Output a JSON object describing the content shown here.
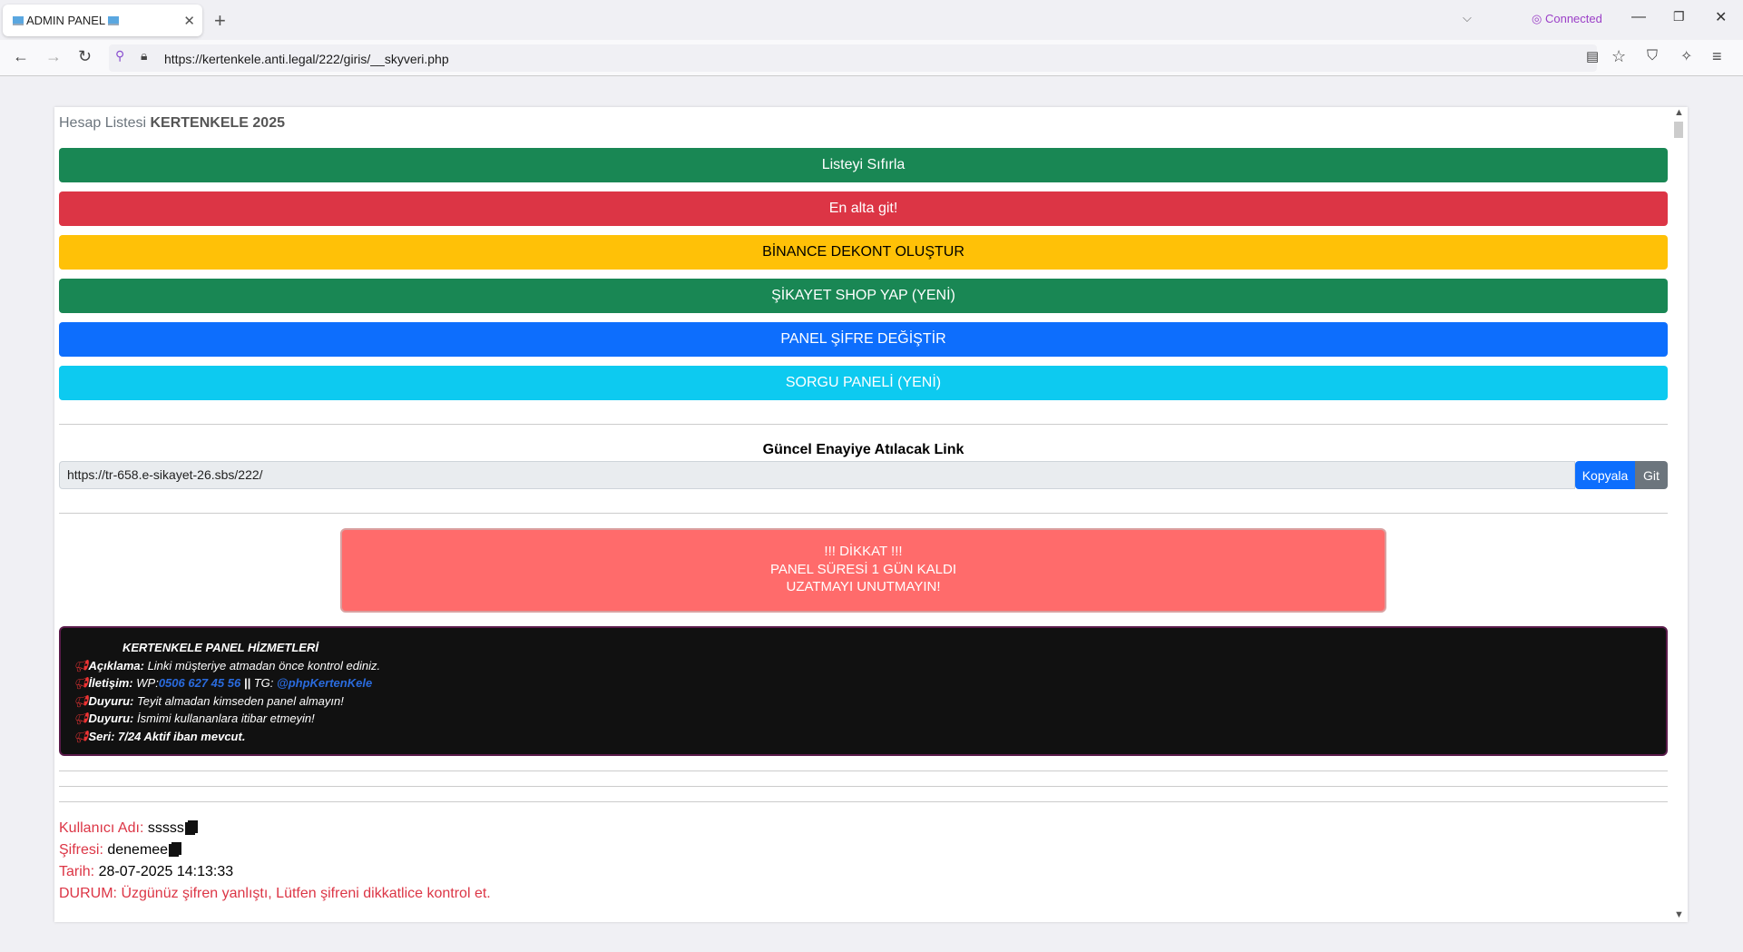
{
  "browser": {
    "tab_title": "ADMIN PANEL",
    "url": "https://kertenkele.anti.legal/222/giris/__skyveri.php",
    "vpn_status": "Connected"
  },
  "page": {
    "title_prefix": "Hesap Listesi",
    "title_bold": "KERTENKELE 2025",
    "buttons": [
      {
        "label": "Listeyi Sıfırla",
        "color": "#198754"
      },
      {
        "label": "En alta git!",
        "color": "#dc3545"
      },
      {
        "label": "BİNANCE DEKONT OLUŞTUR",
        "color": "#ffc107"
      },
      {
        "label": "ŞİKAYET SHOP YAP (YENİ)",
        "color": "#198754"
      },
      {
        "label": "PANEL ŞİFRE DEĞİŞTİR",
        "color": "#0d6efd"
      },
      {
        "label": "SORGU PANELİ (YENİ)",
        "color": "#0dcaf0"
      }
    ],
    "link_title": "Güncel Enayiye Atılacak Link",
    "link_value": "https://tr-658.e-sikayet-26.sbs/222/",
    "copy_label": "Kopyala",
    "go_label": "Git",
    "alert": [
      "!!! DİKKAT !!!",
      "PANEL SÜRESİ 1 GÜN KALDI",
      "UZATMAYI UNUTMAYIN!"
    ],
    "info": {
      "heading": "KERTENKELE PANEL HİZMETLERİ",
      "l1_label": "Açıklama:",
      "l1_text": "Linki müşteriye atmadan önce kontrol ediniz.",
      "l2_label": "İletişim:",
      "l2_wp": "WP:",
      "l2_phone": "0506 627 45 56",
      "l2_sep": "||",
      "l2_tg": "TG:",
      "l2_handle": "@phpKertenKele",
      "l3_label": "Duyuru:",
      "l3_text": "Teyit almadan kimseden panel almayın!",
      "l4_label": "Duyuru:",
      "l4_text": "İsmimi kullananlara itibar etmeyin!",
      "l5_text": "Seri: 7/24 Aktif iban mevcut."
    },
    "record": {
      "user_label": "Kullanıcı Adı:",
      "user": "sssss",
      "pass_label": "Şifresi:",
      "pass": "denemee",
      "date_label": "Tarih:",
      "date": "28-07-2025 14:13:33",
      "status": "DURUM: Üzgünüz şifren yanlıştı, Lütfen şifreni dikkatlice kontrol et."
    }
  }
}
